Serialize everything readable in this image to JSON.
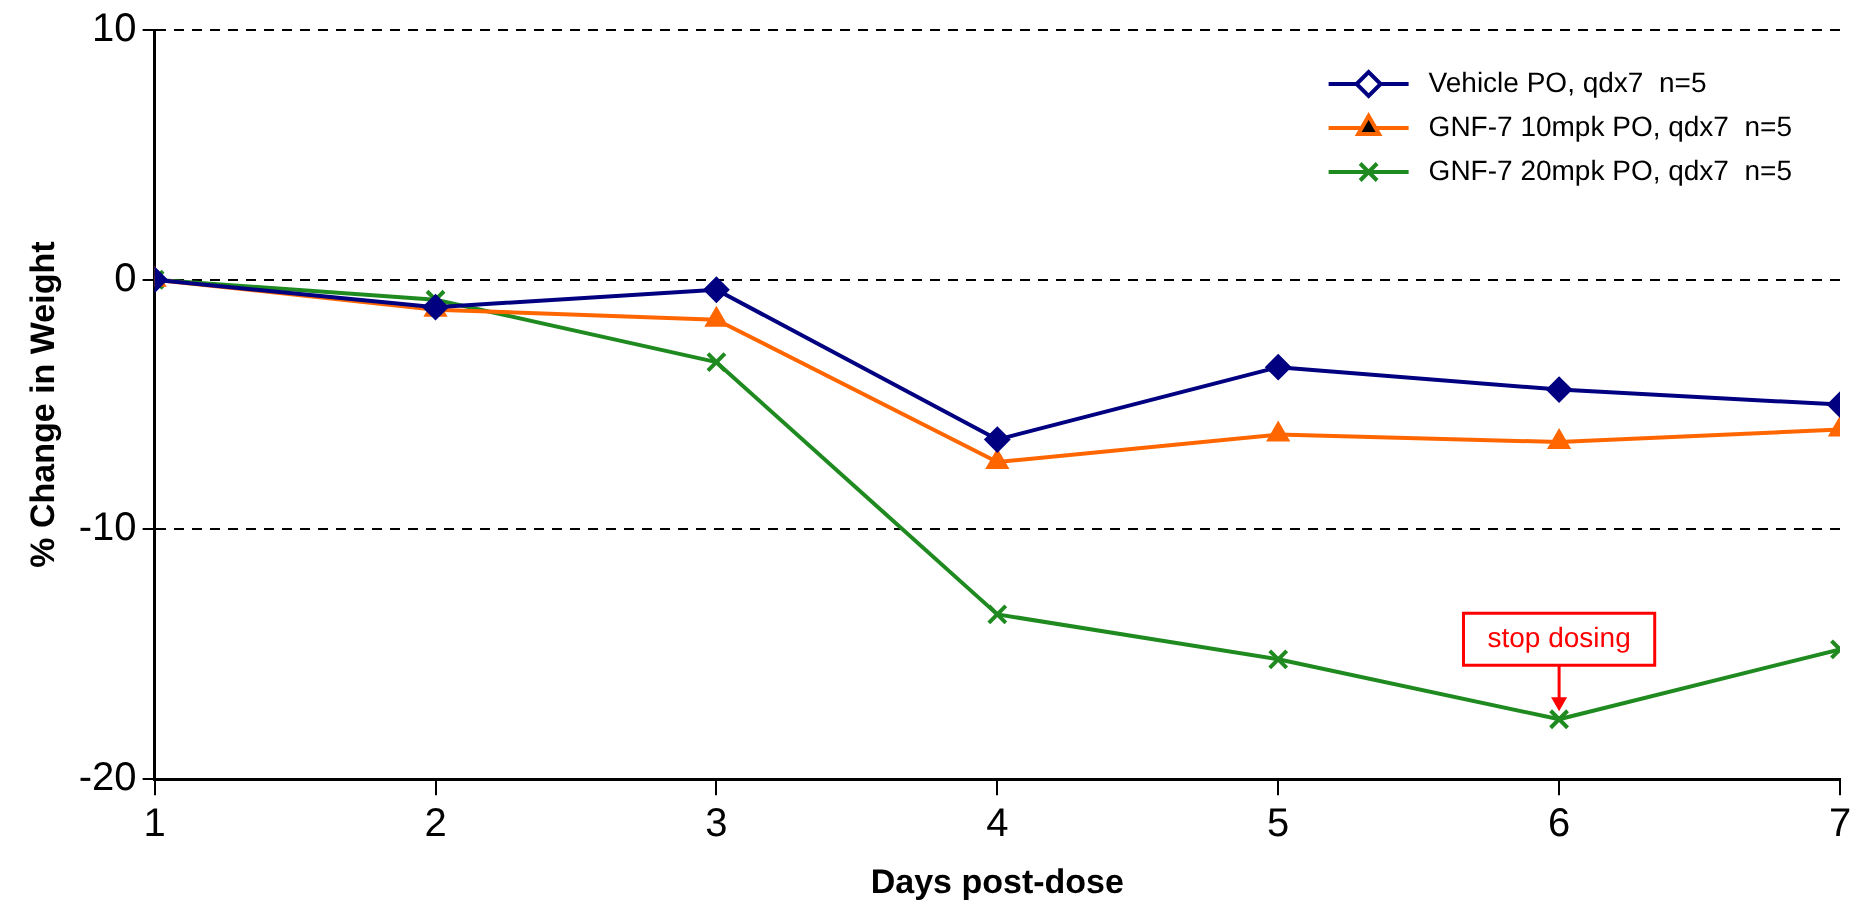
{
  "chart_data": {
    "type": "line",
    "xlabel": "Days post-dose",
    "ylabel": "% Change in Weight",
    "x": [
      1,
      2,
      3,
      4,
      5,
      6,
      7
    ],
    "xlim": [
      1,
      7
    ],
    "xticks": [
      1,
      2,
      3,
      4,
      5,
      6,
      7
    ],
    "ylim": [
      -20,
      10
    ],
    "yticks": [
      -20,
      -10,
      0,
      10
    ],
    "grid": "y",
    "line_style": "solid",
    "legend": "top right",
    "series": [
      {
        "name": "Vehicle PO, qdx7  n=5",
        "color": "#000080",
        "marker": "diamond",
        "values": [
          0,
          -1.1,
          -0.4,
          -6.4,
          -3.5,
          -4.4,
          -5.0
        ]
      },
      {
        "name": "GNF-7 10mpk PO, qdx7  n=5",
        "color": "#ff6600",
        "marker": "triangle",
        "values": [
          0,
          -1.2,
          -1.6,
          -7.3,
          -6.2,
          -6.5,
          -6.0
        ]
      },
      {
        "name": "GNF-7 20mpk PO, qdx7  n=5",
        "color": "#1f8a1f",
        "marker": "cross",
        "values": [
          0,
          -0.8,
          -3.3,
          -13.4,
          -15.2,
          -17.6,
          -14.8
        ]
      }
    ],
    "annotations": [
      {
        "text": "stop dosing",
        "x": 6,
        "y": -17.6
      }
    ]
  }
}
